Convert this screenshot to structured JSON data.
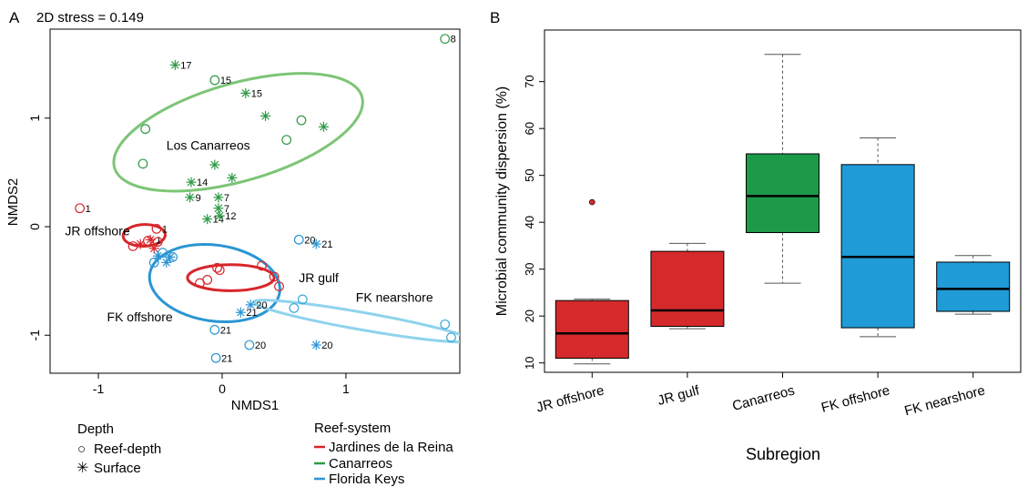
{
  "chart_data": [
    {
      "type": "scatter",
      "panel_label": "A",
      "subtitle": "2D stress = 0.149",
      "xlabel": "NMDS1",
      "ylabel": "NMDS2",
      "xlim": [
        -1.39,
        1.92
      ],
      "ylim": [
        -1.35,
        1.82
      ],
      "xticks": [
        "-1",
        "0",
        "1"
      ],
      "xtick_values": [
        -1,
        0,
        1
      ],
      "yticks": [
        "-1",
        "0",
        "1"
      ],
      "ytick_values": [
        -1,
        0,
        1
      ],
      "colors": {
        "jr": "#d7262b",
        "can": "#2e9a46",
        "fk": "#2b95d4",
        "fkn": "#3ba7d6",
        "can_ell": "#7cc576",
        "fkn_ell": "#8fd3ec"
      },
      "points": [
        {
          "x": 1.8,
          "y": 1.73,
          "shape": "circle",
          "color": "can",
          "label": "8"
        },
        {
          "x": -0.38,
          "y": 1.49,
          "shape": "star",
          "color": "can",
          "label": "17"
        },
        {
          "x": -0.06,
          "y": 1.35,
          "shape": "circle",
          "color": "can",
          "label": "15"
        },
        {
          "x": 0.19,
          "y": 1.23,
          "shape": "star",
          "color": "can",
          "label": "15"
        },
        {
          "x": 0.35,
          "y": 1.02,
          "shape": "star",
          "color": "can",
          "label": ""
        },
        {
          "x": 0.64,
          "y": 0.98,
          "shape": "circle",
          "color": "can",
          "label": ""
        },
        {
          "x": 0.82,
          "y": 0.92,
          "shape": "star",
          "color": "can",
          "label": ""
        },
        {
          "x": -0.62,
          "y": 0.9,
          "shape": "circle",
          "color": "can",
          "label": ""
        },
        {
          "x": 0.52,
          "y": 0.8,
          "shape": "circle",
          "color": "can",
          "label": ""
        },
        {
          "x": -0.64,
          "y": 0.58,
          "shape": "circle",
          "color": "can",
          "label": ""
        },
        {
          "x": -0.06,
          "y": 0.57,
          "shape": "star",
          "color": "can",
          "label": ""
        },
        {
          "x": 0.08,
          "y": 0.45,
          "shape": "star",
          "color": "can",
          "label": ""
        },
        {
          "x": -0.25,
          "y": 0.41,
          "shape": "star",
          "color": "can",
          "label": "14"
        },
        {
          "x": -0.26,
          "y": 0.27,
          "shape": "star",
          "color": "can",
          "label": "9"
        },
        {
          "x": -0.03,
          "y": 0.27,
          "shape": "star",
          "color": "can",
          "label": "7"
        },
        {
          "x": -0.03,
          "y": 0.17,
          "shape": "star",
          "color": "can",
          "label": "7"
        },
        {
          "x": -0.12,
          "y": 0.07,
          "shape": "star",
          "color": "can",
          "label": "14"
        },
        {
          "x": -0.02,
          "y": 0.1,
          "shape": "star",
          "color": "can",
          "label": "12"
        },
        {
          "x": -1.15,
          "y": 0.17,
          "shape": "circle",
          "color": "jr",
          "label": "1"
        },
        {
          "x": -0.53,
          "y": -0.02,
          "shape": "circle",
          "color": "jr",
          "label": "1"
        },
        {
          "x": -0.58,
          "y": -0.12,
          "shape": "star",
          "color": "jr",
          "label": "1"
        },
        {
          "x": -0.72,
          "y": -0.18,
          "shape": "circle",
          "color": "jr",
          "label": ""
        },
        {
          "x": -0.66,
          "y": -0.16,
          "shape": "star",
          "color": "jr",
          "label": ""
        },
        {
          "x": -0.55,
          "y": -0.2,
          "shape": "star",
          "color": "jr",
          "label": ""
        },
        {
          "x": -0.6,
          "y": -0.13,
          "shape": "circle",
          "color": "jr",
          "label": ""
        },
        {
          "x": -0.52,
          "y": -0.14,
          "shape": "circle",
          "color": "jr",
          "label": ""
        },
        {
          "x": -0.04,
          "y": -0.38,
          "shape": "circle",
          "color": "jr",
          "label": ""
        },
        {
          "x": -0.02,
          "y": -0.4,
          "shape": "circle",
          "color": "jr",
          "label": ""
        },
        {
          "x": 0.32,
          "y": -0.36,
          "shape": "circle",
          "color": "jr",
          "label": ""
        },
        {
          "x": 0.42,
          "y": -0.46,
          "shape": "circle",
          "color": "jr",
          "label": ""
        },
        {
          "x": 0.46,
          "y": -0.55,
          "shape": "circle",
          "color": "jr",
          "label": ""
        },
        {
          "x": -0.18,
          "y": -0.52,
          "shape": "circle",
          "color": "jr",
          "label": ""
        },
        {
          "x": -0.12,
          "y": -0.49,
          "shape": "circle",
          "color": "jr",
          "label": ""
        },
        {
          "x": -0.42,
          "y": -0.28,
          "shape": "star",
          "color": "fk",
          "label": ""
        },
        {
          "x": -0.52,
          "y": -0.27,
          "shape": "star",
          "color": "fk",
          "label": ""
        },
        {
          "x": -0.45,
          "y": -0.33,
          "shape": "star",
          "color": "fk",
          "label": ""
        },
        {
          "x": -0.48,
          "y": -0.24,
          "shape": "circle",
          "color": "fk",
          "label": ""
        },
        {
          "x": -0.4,
          "y": -0.28,
          "shape": "circle",
          "color": "fk",
          "label": ""
        },
        {
          "x": -0.55,
          "y": -0.33,
          "shape": "circle",
          "color": "fk",
          "label": ""
        },
        {
          "x": 0.62,
          "y": -0.12,
          "shape": "circle",
          "color": "fk",
          "label": "20"
        },
        {
          "x": 0.76,
          "y": -0.16,
          "shape": "star",
          "color": "fk",
          "label": "21"
        },
        {
          "x": 0.23,
          "y": -0.72,
          "shape": "star",
          "color": "fk",
          "label": "20"
        },
        {
          "x": 0.15,
          "y": -0.79,
          "shape": "star",
          "color": "fk",
          "label": "21"
        },
        {
          "x": -0.06,
          "y": -0.95,
          "shape": "circle",
          "color": "fk",
          "label": "21"
        },
        {
          "x": 0.22,
          "y": -1.09,
          "shape": "circle",
          "color": "fk",
          "label": "20"
        },
        {
          "x": -0.05,
          "y": -1.21,
          "shape": "circle",
          "color": "fk",
          "label": "21"
        },
        {
          "x": 0.76,
          "y": -1.09,
          "shape": "star",
          "color": "fk",
          "label": "20"
        },
        {
          "x": 0.65,
          "y": -0.67,
          "shape": "circle",
          "color": "fkn",
          "label": ""
        },
        {
          "x": 0.58,
          "y": -0.75,
          "shape": "circle",
          "color": "fkn",
          "label": ""
        },
        {
          "x": 1.8,
          "y": -0.9,
          "shape": "circle",
          "color": "fkn",
          "label": ""
        },
        {
          "x": 1.85,
          "y": -1.02,
          "shape": "circle",
          "color": "fkn",
          "label": ""
        }
      ],
      "ellipses": [
        {
          "name": "Los Canarreos",
          "cx": 0.13,
          "cy": 0.87,
          "rx": 1.04,
          "ry": 0.45,
          "angle": 16,
          "color": "can_ell",
          "label_x": -0.45,
          "label_y": 0.71
        },
        {
          "name": "JR offshore",
          "cx": -0.63,
          "cy": -0.08,
          "rx": 0.17,
          "ry": 0.1,
          "angle": 2,
          "color": "jr",
          "label_x": -1.27,
          "label_y": -0.08
        },
        {
          "name": "JR gulf",
          "cx": 0.07,
          "cy": -0.47,
          "rx": 0.35,
          "ry": 0.12,
          "angle": 0,
          "color": "jr",
          "label_x": 0.62,
          "label_y": -0.51
        },
        {
          "name": "FK offshore",
          "cx": -0.06,
          "cy": -0.52,
          "rx": 0.53,
          "ry": 0.35,
          "angle": -8,
          "color": "fk",
          "label_x": -0.93,
          "label_y": -0.87
        },
        {
          "name": "FK nearshore",
          "cx": 1.13,
          "cy": -0.87,
          "rx": 0.89,
          "ry": 0.08,
          "angle": -10,
          "color": "fkn_ell",
          "label_x": 1.08,
          "label_y": -0.69
        }
      ],
      "legend": {
        "depth_title": "Depth",
        "depth_items": [
          {
            "symbol": "○",
            "label": "Reef-depth"
          },
          {
            "symbol": "✳",
            "label": "Surface"
          }
        ],
        "reef_title": "Reef-system",
        "reef_items": [
          {
            "color": "jr",
            "label": "Jardines de la Reina"
          },
          {
            "color": "can",
            "label": "Canarreos"
          },
          {
            "color": "fk",
            "label": "Florida Keys"
          }
        ]
      }
    },
    {
      "type": "box",
      "panel_label": "B",
      "xlabel": "Subregion",
      "ylabel": "Microbial community dispersion (%)",
      "ylim": [
        8,
        81
      ],
      "yticks": [
        "10",
        "20",
        "30",
        "40",
        "50",
        "60",
        "70"
      ],
      "ytick_values": [
        10,
        20,
        30,
        40,
        50,
        60,
        70
      ],
      "categories": [
        "JR offshore",
        "JR gulf",
        "Canarreos",
        "FK offshore",
        "FK nearshore"
      ],
      "boxes": [
        {
          "category": "JR offshore",
          "whisker_low": 9.8,
          "q1": 11,
          "median": 16.3,
          "q3": 23.3,
          "whisker_high": 23.6,
          "outliers": [
            44.3
          ],
          "color": "#d42a2b"
        },
        {
          "category": "JR gulf",
          "whisker_low": 17.3,
          "q1": 17.8,
          "median": 21.2,
          "q3": 33.8,
          "whisker_high": 35.5,
          "outliers": [],
          "color": "#d42a2b"
        },
        {
          "category": "Canarreos",
          "whisker_low": 27,
          "q1": 37.8,
          "median": 45.6,
          "q3": 54.6,
          "whisker_high": 75.8,
          "outliers": [],
          "color": "#1c9a48"
        },
        {
          "category": "FK offshore",
          "whisker_low": 15.6,
          "q1": 17.5,
          "median": 32.6,
          "q3": 52.3,
          "whisker_high": 58,
          "outliers": [],
          "color": "#1f9bd7"
        },
        {
          "category": "FK nearshore",
          "whisker_low": 20.4,
          "q1": 21,
          "median": 25.8,
          "q3": 31.5,
          "whisker_high": 32.9,
          "outliers": [],
          "color": "#1f9bd7"
        }
      ]
    }
  ]
}
